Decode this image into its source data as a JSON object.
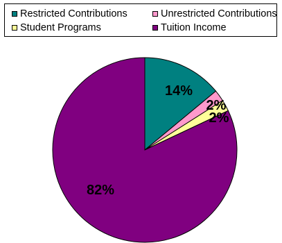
{
  "chart_data": {
    "type": "pie",
    "legend_placement": "top",
    "slices": [
      {
        "name": "Restricted Contributions",
        "value": 14,
        "label": "14%",
        "color": "#008080"
      },
      {
        "name": "Unrestricted Contributions",
        "value": 2,
        "label": "2%",
        "color": "#ff99cc"
      },
      {
        "name": "Student Programs",
        "value": 2,
        "label": "2%",
        "color": "#ffff99"
      },
      {
        "name": "Tuition Income",
        "value": 82,
        "label": "82%",
        "color": "#800080"
      }
    ]
  }
}
